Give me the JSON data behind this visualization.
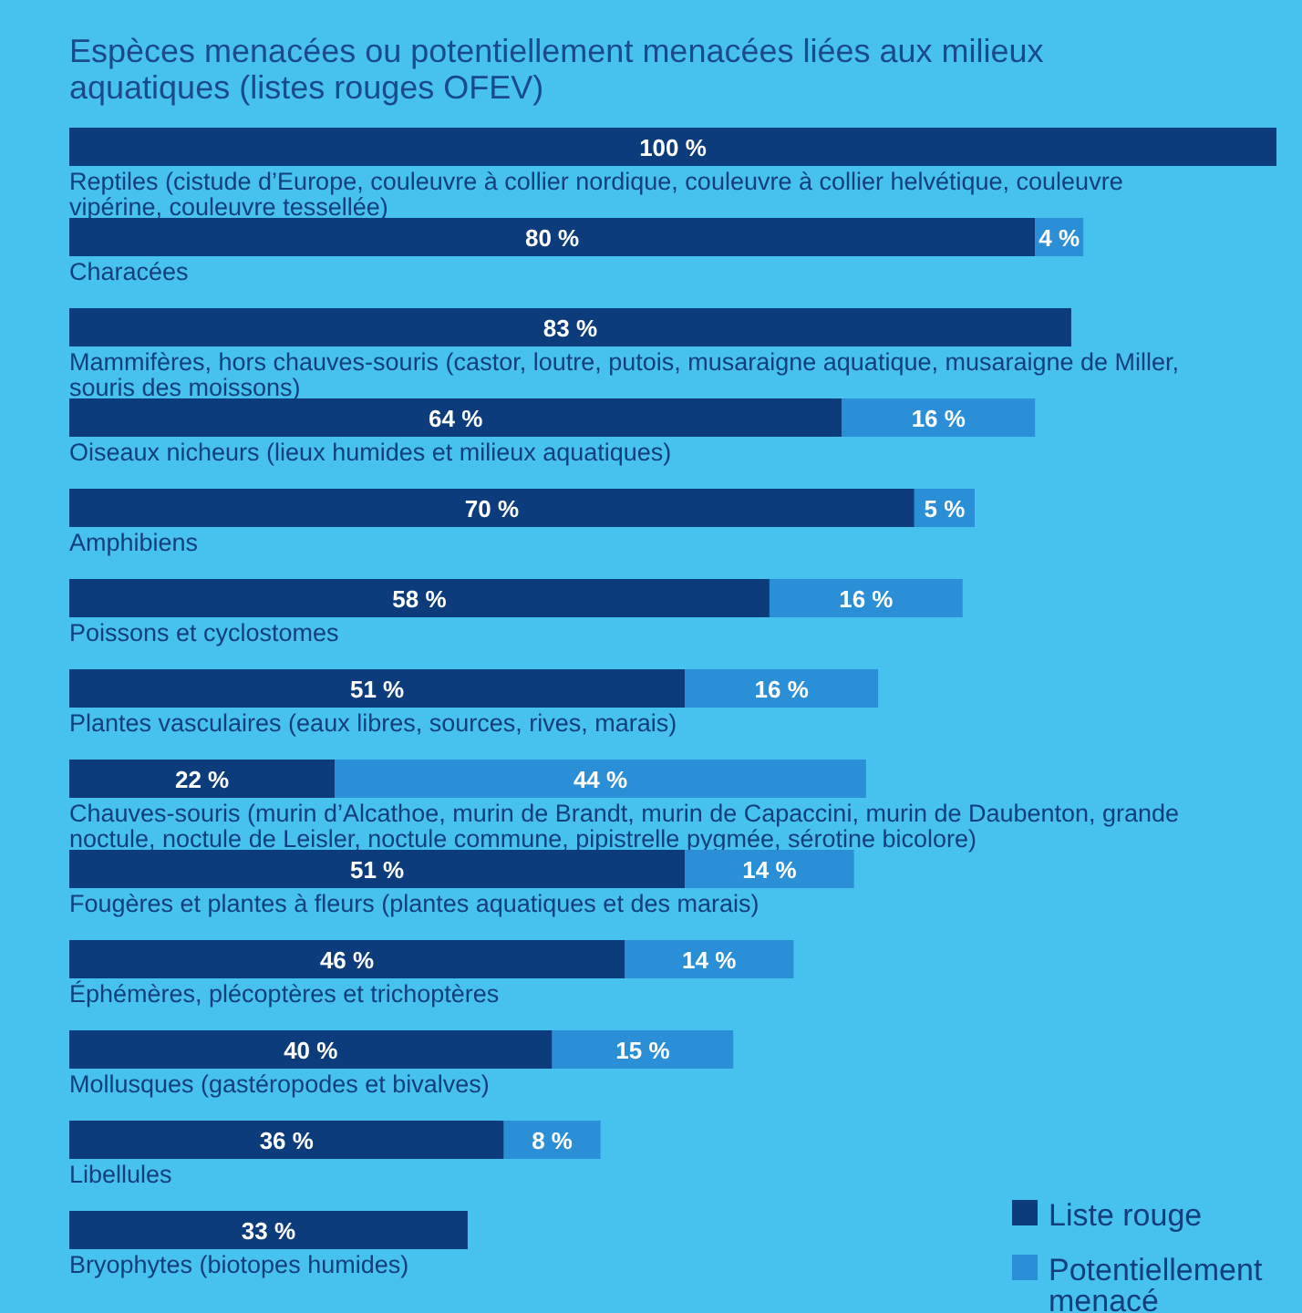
{
  "chart_data": {
    "type": "bar",
    "orientation": "horizontal",
    "stacked": true,
    "title": "Espèces menacées ou potentiellement menacées liées aux milieux aquatiques (listes rouges OFEV)",
    "categories": [
      "Reptiles (cistude d’Europe, couleuvre à collier nordique, couleuvre à collier helvétique, couleuvre vipérine, couleuvre tessellée)",
      "Characées",
      "Mammifères, hors chauves-souris (castor, loutre, putois, musaraigne aquatique, musaraigne de Miller, souris des moissons)",
      "Oiseaux nicheurs (lieux humides et milieux aquatiques)",
      "Amphibiens",
      "Poissons et cyclostomes",
      "Plantes vasculaires (eaux libres, sources, rives, marais)",
      "Chauves-souris (murin d’Alcathoe, murin de Brandt, murin de Capaccini, murin de Daubenton, grande noctule, noctule de Leisler, noctule commune, pipistrelle pygmée, sérotine bicolore)",
      "Fougères et plantes à fleurs (plantes aquatiques et des marais)",
      "Éphémères, plécoptères et trichoptères",
      "Mollusques (gastéropodes et bivalves)",
      "Libellules",
      "Bryophytes (biotopes humides)"
    ],
    "series": [
      {
        "name": "Liste rouge",
        "color": "#0c3c7c",
        "values": [
          100,
          80,
          83,
          64,
          70,
          58,
          51,
          22,
          51,
          46,
          40,
          36,
          33
        ],
        "value_labels": [
          "100 %",
          "80 %",
          "83 %",
          "64 %",
          "70 %",
          "58 %",
          "51 %",
          "22 %",
          "51 %",
          "46 %",
          "40 %",
          "36 %",
          "33 %"
        ]
      },
      {
        "name": "Potentiellement menacé",
        "color": "#2a8fd6",
        "values": [
          null,
          4,
          null,
          16,
          5,
          16,
          16,
          44,
          14,
          14,
          15,
          8,
          null
        ],
        "value_labels": [
          null,
          "4 %",
          null,
          "16 %",
          "5 %",
          "16 %",
          "16 %",
          "44 %",
          "14 %",
          "14 %",
          "15 %",
          "8 %",
          null
        ]
      }
    ],
    "legend": "bottom right"
  }
}
